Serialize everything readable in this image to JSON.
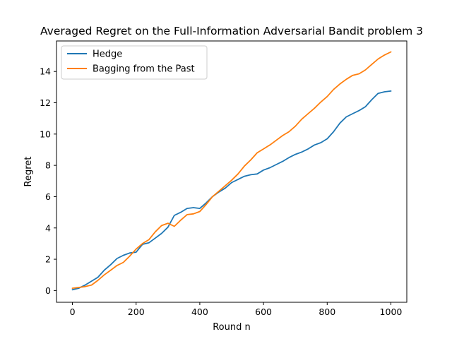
{
  "chart_data": {
    "type": "line",
    "title": "Averaged Regret on the Full-Information Adversarial Bandit problem 3",
    "xlabel": "Round n",
    "ylabel": "Regret",
    "xlim": [
      -50,
      1050
    ],
    "ylim": [
      -0.75,
      15.95
    ],
    "xticks": [
      0,
      200,
      400,
      600,
      800,
      1000
    ],
    "yticks": [
      0,
      2,
      4,
      6,
      8,
      10,
      12,
      14
    ],
    "grid": false,
    "legend_position": "top-left",
    "series": [
      {
        "name": "Hedge",
        "color": "#1f77b4",
        "x": [
          0,
          20,
          40,
          60,
          80,
          100,
          120,
          140,
          160,
          180,
          200,
          220,
          240,
          260,
          280,
          300,
          320,
          340,
          360,
          380,
          400,
          420,
          440,
          460,
          480,
          500,
          520,
          540,
          560,
          580,
          600,
          620,
          640,
          660,
          680,
          700,
          720,
          740,
          760,
          780,
          800,
          820,
          840,
          860,
          880,
          900,
          920,
          940,
          960,
          980,
          1000
        ],
        "y": [
          0.05,
          0.15,
          0.35,
          0.6,
          0.85,
          1.3,
          1.65,
          2.05,
          2.25,
          2.4,
          2.45,
          2.95,
          3.05,
          3.35,
          3.65,
          4.05,
          4.8,
          5.0,
          5.25,
          5.3,
          5.25,
          5.6,
          6.0,
          6.3,
          6.55,
          6.9,
          7.1,
          7.3,
          7.4,
          7.45,
          7.7,
          7.85,
          8.05,
          8.25,
          8.5,
          8.7,
          8.85,
          9.05,
          9.3,
          9.45,
          9.7,
          10.15,
          10.7,
          11.1,
          11.3,
          11.5,
          11.75,
          12.2,
          12.6,
          12.7,
          12.75
        ]
      },
      {
        "name": "Bagging from the Past",
        "color": "#ff7f0e",
        "x": [
          0,
          20,
          40,
          60,
          80,
          100,
          120,
          140,
          160,
          180,
          200,
          220,
          240,
          260,
          280,
          300,
          320,
          340,
          360,
          380,
          400,
          420,
          440,
          460,
          480,
          500,
          520,
          540,
          560,
          580,
          600,
          620,
          640,
          660,
          680,
          700,
          720,
          740,
          760,
          780,
          800,
          820,
          840,
          860,
          880,
          900,
          920,
          940,
          960,
          980,
          1000
        ],
        "y": [
          0.15,
          0.2,
          0.25,
          0.35,
          0.65,
          1.0,
          1.3,
          1.6,
          1.8,
          2.2,
          2.65,
          3.0,
          3.25,
          3.75,
          4.15,
          4.3,
          4.1,
          4.5,
          4.85,
          4.9,
          5.05,
          5.5,
          6.0,
          6.35,
          6.7,
          7.05,
          7.45,
          7.95,
          8.35,
          8.8,
          9.05,
          9.3,
          9.6,
          9.9,
          10.15,
          10.5,
          10.95,
          11.3,
          11.65,
          12.05,
          12.4,
          12.85,
          13.2,
          13.5,
          13.75,
          13.85,
          14.1,
          14.45,
          14.8,
          15.05,
          15.25
        ]
      }
    ]
  }
}
